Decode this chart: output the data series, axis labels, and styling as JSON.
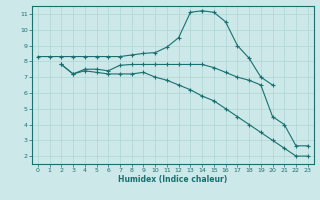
{
  "xlabel": "Humidex (Indice chaleur)",
  "xlim": [
    -0.5,
    23.5
  ],
  "ylim": [
    1.5,
    11.5
  ],
  "yticks": [
    2,
    3,
    4,
    5,
    6,
    7,
    8,
    9,
    10,
    11
  ],
  "xticks": [
    0,
    1,
    2,
    3,
    4,
    5,
    6,
    7,
    8,
    9,
    10,
    11,
    12,
    13,
    14,
    15,
    16,
    17,
    18,
    19,
    20,
    21,
    22,
    23
  ],
  "background_color": "#cce8e8",
  "grid_color": "#afd4d4",
  "line_color": "#1a7070",
  "line1_x": [
    0,
    1,
    2,
    3,
    4,
    5,
    6,
    7,
    8,
    9,
    10,
    11,
    12,
    13,
    14,
    15,
    16,
    17,
    18,
    19,
    20
  ],
  "line1_y": [
    8.3,
    8.3,
    8.3,
    8.3,
    8.3,
    8.3,
    8.3,
    8.3,
    8.4,
    8.5,
    8.55,
    8.9,
    9.5,
    11.1,
    11.2,
    11.1,
    10.5,
    9.0,
    8.2,
    7.0,
    6.5
  ],
  "line2_x": [
    2,
    3,
    4,
    5,
    6,
    7,
    8,
    9,
    10,
    11,
    12,
    13,
    14,
    15,
    16,
    17,
    18,
    19,
    20,
    21,
    22,
    23
  ],
  "line2_y": [
    7.8,
    7.2,
    7.5,
    7.5,
    7.4,
    7.75,
    7.8,
    7.8,
    7.8,
    7.8,
    7.8,
    7.8,
    7.8,
    7.6,
    7.3,
    7.0,
    6.8,
    6.5,
    4.5,
    4.0,
    2.65,
    2.65
  ],
  "line3_x": [
    2,
    3,
    4,
    5,
    6,
    7,
    8,
    9,
    10,
    11,
    12,
    13,
    14,
    15,
    16,
    17,
    18,
    19,
    20,
    21,
    22,
    23
  ],
  "line3_y": [
    7.8,
    7.2,
    7.4,
    7.3,
    7.2,
    7.2,
    7.2,
    7.3,
    7.0,
    6.8,
    6.5,
    6.2,
    5.8,
    5.5,
    5.0,
    4.5,
    4.0,
    3.5,
    3.0,
    2.5,
    2.0,
    2.0
  ]
}
